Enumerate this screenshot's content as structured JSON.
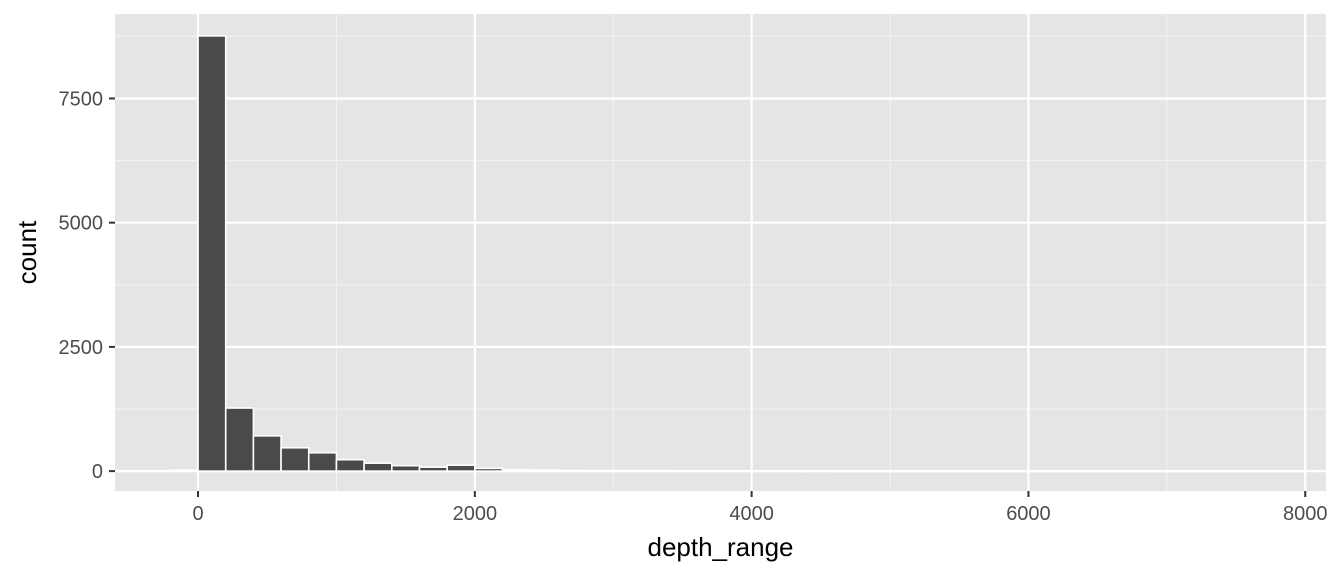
{
  "chart_data": {
    "type": "bar",
    "subtype": "histogram",
    "title": "",
    "xlabel": "depth_range",
    "ylabel": "count",
    "xlim": [
      -600,
      8150
    ],
    "ylim": [
      -400,
      9200
    ],
    "x_ticks": [
      0,
      2000,
      4000,
      6000,
      8000
    ],
    "x_tick_labels": [
      "0",
      "2000",
      "4000",
      "6000",
      "8000"
    ],
    "y_ticks": [
      0,
      2500,
      5000,
      7500
    ],
    "y_tick_labels": [
      "0",
      "2500",
      "5000",
      "7500"
    ],
    "bin_width": 200,
    "bins": [
      {
        "x": -200,
        "count": 20
      },
      {
        "x": 0,
        "count": 8760
      },
      {
        "x": 200,
        "count": 1270
      },
      {
        "x": 400,
        "count": 710
      },
      {
        "x": 600,
        "count": 470
      },
      {
        "x": 800,
        "count": 370
      },
      {
        "x": 1000,
        "count": 230
      },
      {
        "x": 1200,
        "count": 160
      },
      {
        "x": 1400,
        "count": 110
      },
      {
        "x": 1600,
        "count": 80
      },
      {
        "x": 1800,
        "count": 120
      },
      {
        "x": 2000,
        "count": 55
      },
      {
        "x": 2200,
        "count": 25
      },
      {
        "x": 2400,
        "count": 20
      },
      {
        "x": 2600,
        "count": 15
      },
      {
        "x": 2800,
        "count": 12
      },
      {
        "x": 3000,
        "count": 10
      },
      {
        "x": 3200,
        "count": 10
      },
      {
        "x": 3400,
        "count": 6
      },
      {
        "x": 3600,
        "count": 5
      },
      {
        "x": 3800,
        "count": 5
      },
      {
        "x": 4000,
        "count": 5
      },
      {
        "x": 4200,
        "count": 4
      },
      {
        "x": 4400,
        "count": 4
      },
      {
        "x": 4600,
        "count": 3
      },
      {
        "x": 4800,
        "count": 2
      },
      {
        "x": 5000,
        "count": 2
      },
      {
        "x": 5200,
        "count": 2
      },
      {
        "x": 5400,
        "count": 2
      },
      {
        "x": 5600,
        "count": 1
      },
      {
        "x": 5800,
        "count": 1
      },
      {
        "x": 6000,
        "count": 1
      },
      {
        "x": 6200,
        "count": 1
      },
      {
        "x": 6400,
        "count": 1
      },
      {
        "x": 6600,
        "count": 1
      },
      {
        "x": 6800,
        "count": 1
      },
      {
        "x": 7000,
        "count": 1
      },
      {
        "x": 7200,
        "count": 1
      },
      {
        "x": 7400,
        "count": 1
      },
      {
        "x": 7600,
        "count": 1
      },
      {
        "x": 7800,
        "count": 1
      }
    ],
    "grid": true,
    "colors": {
      "panel_background": "#e5e5e5",
      "grid_major": "#ffffff",
      "grid_minor": "#f2f2f2",
      "bar_fill": "#4a4a4a",
      "bar_outline": "#ffffff",
      "tick_mark": "#333333"
    }
  }
}
